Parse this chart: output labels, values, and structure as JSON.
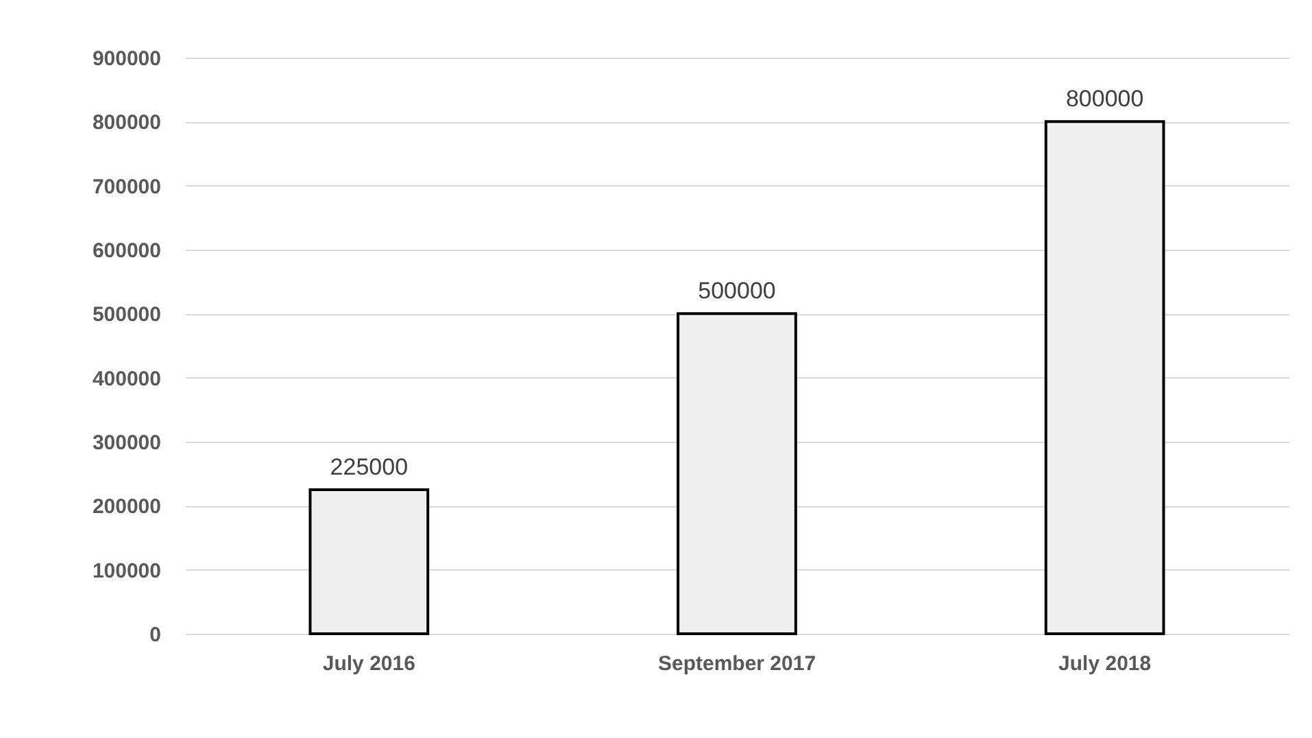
{
  "chart_data": {
    "type": "bar",
    "categories": [
      "July 2016",
      "September 2017",
      "July 2018"
    ],
    "values": [
      225000,
      500000,
      800000
    ],
    "color": "#f0f0f0",
    "ylim": [
      0,
      900000
    ],
    "yticks": [
      0,
      100000,
      200000,
      300000,
      400000,
      500000,
      600000,
      700000,
      800000,
      900000
    ],
    "grid": "y",
    "data_labels": true
  }
}
